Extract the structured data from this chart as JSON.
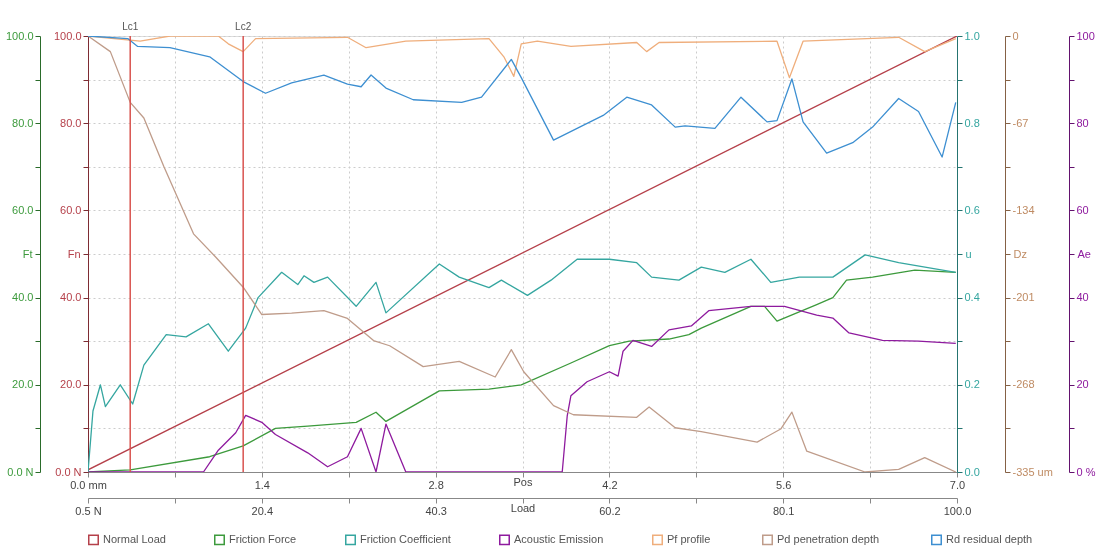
{
  "chart_data": {
    "type": "line",
    "xlabel": "Pos",
    "xlim": [
      0,
      7
    ],
    "xticks": [
      {
        "value": 0,
        "label": "0.0 mm"
      },
      {
        "value": 0.7,
        "label": null
      },
      1.4,
      {
        "value": 2.1,
        "label": null
      },
      2.8,
      {
        "value": 3.5,
        "label": null
      },
      4.2,
      {
        "value": 4.9,
        "label": null
      },
      5.6,
      {
        "value": 6.3,
        "label": null
      },
      {
        "value": 7,
        "label": "7.0"
      }
    ],
    "x2label": "Load",
    "x2lim": [
      0.5,
      100
    ],
    "x2ticks": [
      {
        "value": 0.5,
        "label": "0.5 N"
      },
      {
        "value": 10.45,
        "label": null
      },
      20.4,
      {
        "value": 30.35,
        "label": null
      },
      40.3,
      {
        "value": 50.25,
        "label": null
      },
      60.2,
      {
        "value": 70.15,
        "label": null
      },
      80.1,
      {
        "value": 90.05,
        "label": null
      },
      {
        "value": 100,
        "label": "100.0"
      }
    ],
    "ylabel": "Ft",
    "ylim": [
      0,
      100
    ],
    "yticks": [
      {
        "value": 0,
        "label": "0.0 N"
      },
      {
        "value": 10,
        "label": null
      },
      {
        "value": 20,
        "label": "20.0"
      },
      {
        "value": 30,
        "label": null
      },
      {
        "value": 40,
        "label": "40.0"
      },
      {
        "value": 50,
        "label": null
      },
      {
        "value": 60,
        "label": "60.0"
      },
      {
        "value": 70,
        "label": null
      },
      {
        "value": 80,
        "label": "80.0"
      },
      {
        "value": 90,
        "label": null
      },
      {
        "value": 100,
        "label": "100.0"
      }
    ],
    "annotations": [
      "Fn",
      "Ae",
      "0 %",
      "20",
      "40",
      "60",
      "80",
      "100"
    ],
    "y2label": "u",
    "y2lim": [
      0,
      1
    ],
    "y2ticks": [
      {
        "value": 0,
        "label": "0.0"
      },
      {
        "value": 0.1,
        "label": null
      },
      {
        "value": 0.2,
        "label": "0.2"
      },
      {
        "value": 0.3,
        "label": null
      },
      {
        "value": 0.4,
        "label": "0.4"
      },
      {
        "value": 0.5,
        "label": null
      },
      {
        "value": 0.6,
        "label": "0.6"
      },
      {
        "value": 0.7,
        "label": null
      },
      {
        "value": 0.8,
        "label": "0.8"
      },
      {
        "value": 0.9,
        "label": null
      },
      {
        "value": 1,
        "label": "1.0"
      }
    ],
    "y3label": "Dz",
    "y3lim": [
      -335,
      0
    ],
    "y3ticks": [
      {
        "value": -335,
        "label": "-335 um"
      },
      {
        "value": -301.5,
        "label": null
      },
      {
        "value": -268,
        "label": "-268"
      },
      {
        "value": -234.5,
        "label": null
      },
      {
        "value": -201,
        "label": "-201"
      },
      {
        "value": -167.5,
        "label": null
      },
      {
        "value": -134,
        "label": "-134"
      },
      {
        "value": -100.5,
        "label": null
      },
      {
        "value": -67,
        "label": "-67"
      },
      {
        "value": -33.5,
        "label": null
      },
      {
        "value": 0,
        "label": "0"
      }
    ],
    "grid": true,
    "legend": "bottom",
    "ref_lines": [
      {
        "axis": "x",
        "value": 0.34,
        "label": "Lc1",
        "color": "#d9534f"
      },
      {
        "axis": "x",
        "value": 1.25,
        "label": "Lc2",
        "color": "#d9534f"
      }
    ],
    "series": [
      {
        "name": "Normal Load",
        "color": "#b5404a",
        "x": [
          0,
          7
        ],
        "values": [
          0.5,
          100
        ]
      },
      {
        "name": "Friction Force",
        "color": "#3c9a3c",
        "x": [
          0,
          0.34,
          0.98,
          1.25,
          1.51,
          1.77,
          2.16,
          2.32,
          2.4,
          2.83,
          3.23,
          3.49,
          3.89,
          4.2,
          4.36,
          4.68,
          4.84,
          4.94,
          5.34,
          5.45,
          5.55,
          5.87,
          6.0,
          6.11,
          6.32,
          6.66,
          6.99
        ],
        "values": [
          0,
          0.5,
          3.5,
          6,
          10,
          10.5,
          11.4,
          13.7,
          11.6,
          18.6,
          19,
          20,
          25,
          29,
          30,
          30.5,
          31.5,
          33,
          38,
          38,
          34.6,
          38.4,
          40,
          44,
          44.7,
          46.3,
          45.8
        ]
      },
      {
        "name": "Friction Coefficient",
        "color": "#35a6a0",
        "axis": "y2",
        "x": [
          0,
          0.04,
          0.1,
          0.14,
          0.26,
          0.36,
          0.45,
          0.63,
          0.79,
          0.97,
          1.13,
          1.27,
          1.37,
          1.56,
          1.69,
          1.74,
          1.82,
          1.93,
          2.16,
          2.32,
          2.4,
          2.83,
          2.99,
          3.23,
          3.33,
          3.54,
          3.73,
          3.94,
          4.2,
          4.42,
          4.54,
          4.76,
          4.94,
          5.13,
          5.34,
          5.5,
          5.73,
          6.0,
          6.26,
          6.53,
          6.99
        ],
        "values": [
          0,
          0.14,
          0.2,
          0.15,
          0.2,
          0.156,
          0.245,
          0.315,
          0.31,
          0.34,
          0.277,
          0.33,
          0.4,
          0.458,
          0.43,
          0.45,
          0.435,
          0.447,
          0.38,
          0.435,
          0.365,
          0.477,
          0.447,
          0.423,
          0.44,
          0.405,
          0.44,
          0.488,
          0.488,
          0.48,
          0.447,
          0.44,
          0.47,
          0.458,
          0.488,
          0.435,
          0.447,
          0.447,
          0.498,
          0.48,
          0.458
        ]
      },
      {
        "name": "Acoustic Emission",
        "color": "#8e1a9e",
        "x": [
          0,
          0.93,
          1.05,
          1.19,
          1.27,
          1.4,
          1.51,
          1.77,
          1.93,
          2.09,
          2.2,
          2.32,
          2.4,
          2.56,
          3.82,
          3.86,
          3.89,
          4.02,
          4.2,
          4.27,
          4.31,
          4.39,
          4.54,
          4.68,
          4.86,
          5.0,
          5.34,
          5.61,
          5.87,
          6.0,
          6.13,
          6.4,
          6.69,
          6.99
        ],
        "values": [
          0,
          0,
          5,
          9,
          13,
          11.4,
          8.6,
          4.4,
          1.2,
          3.5,
          10,
          0,
          11,
          0,
          0,
          12.8,
          17.5,
          20.7,
          23,
          22,
          27.7,
          30.2,
          28.8,
          32.6,
          33.5,
          37,
          38,
          38,
          36,
          35.3,
          31.9,
          30.2,
          30,
          29.5
        ]
      },
      {
        "name": "Pf  profile",
        "color": "#efae7c",
        "axis": "y3",
        "x": [
          0,
          0.42,
          0.66,
          1.05,
          1.13,
          1.25,
          1.35,
          2.09,
          2.24,
          2.56,
          3.23,
          3.35,
          3.43,
          3.49,
          3.62,
          3.89,
          4.42,
          4.5,
          4.6,
          5.55,
          5.65,
          5.76,
          6.53,
          6.74,
          6.99
        ],
        "values": [
          0,
          -4,
          0,
          0,
          -6,
          -12,
          -2,
          -1,
          -9,
          -4,
          -2,
          -16,
          -31,
          -6,
          -4,
          -8,
          -5,
          -12,
          -5,
          -4,
          -32,
          -4,
          -1,
          -12,
          -2
        ]
      },
      {
        "name": "Pd  penetration depth",
        "color": "#bf9c8a",
        "axis": "y3",
        "x": [
          0,
          0.18,
          0.34,
          0.45,
          0.61,
          0.85,
          1.03,
          1.25,
          1.4,
          1.64,
          1.9,
          2.09,
          2.3,
          2.43,
          2.7,
          2.99,
          3.28,
          3.41,
          3.51,
          3.75,
          3.91,
          4.42,
          4.52,
          4.73,
          4.94,
          5.39,
          5.58,
          5.67,
          5.79,
          6.26,
          6.53,
          6.74,
          6.99
        ],
        "values": [
          0,
          -12,
          -51,
          -63,
          -100,
          -152,
          -170,
          -193,
          -214,
          -213,
          -211,
          -217,
          -234,
          -238,
          -254,
          -250,
          -262,
          -241,
          -258,
          -284,
          -291,
          -293,
          -285,
          -301,
          -304,
          -312,
          -302,
          -289,
          -319,
          -335,
          -333,
          -324,
          -335
        ]
      },
      {
        "name": "Rd  residual depth",
        "color": "#3d8fd1",
        "axis": "y3",
        "x": [
          0,
          0.32,
          0.4,
          0.66,
          0.98,
          1.25,
          1.43,
          1.64,
          1.9,
          2.09,
          2.2,
          2.28,
          2.4,
          2.62,
          3.01,
          3.17,
          3.41,
          3.49,
          3.75,
          4.15,
          4.34,
          4.54,
          4.73,
          4.81,
          5.05,
          5.26,
          5.47,
          5.55,
          5.67,
          5.76,
          5.95,
          6.16,
          6.32,
          6.53,
          6.69,
          6.88,
          6.99
        ],
        "values": [
          0,
          -2,
          -8,
          -9,
          -16,
          -35,
          -44,
          -36,
          -30,
          -37,
          -39,
          -30,
          -40,
          -49,
          -51,
          -47,
          -18,
          -32,
          -80,
          -61,
          -47,
          -53,
          -70,
          -69,
          -71,
          -47,
          -66,
          -65,
          -33,
          -66,
          -90,
          -82,
          -70,
          -48,
          -58,
          -93,
          -51
        ]
      }
    ]
  }
}
